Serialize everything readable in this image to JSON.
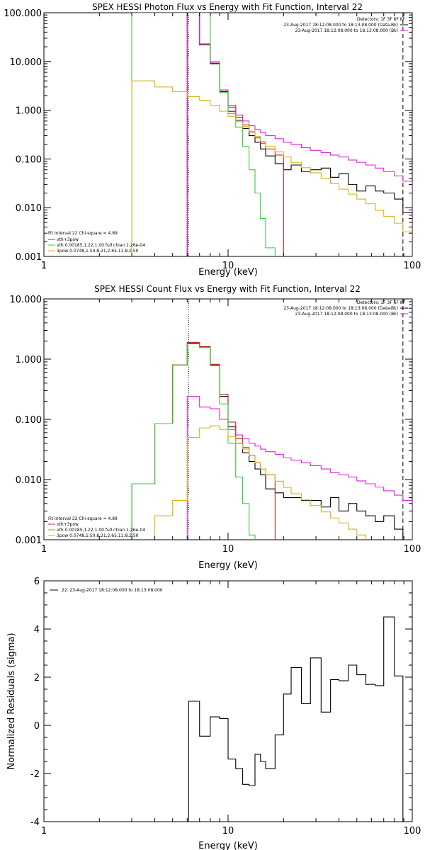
{
  "chart_data": [
    {
      "type": "line",
      "title": "SPEX HESSI Photon Flux vs Energy with Fit Function, Interval 22",
      "xlabel": "Energy (keV)",
      "ylabel": "",
      "xscale": "log",
      "yscale": "log",
      "xlim": [
        1,
        100
      ],
      "ylim": [
        0.001,
        100
      ],
      "x_ticks": [
        "1",
        "10",
        "100"
      ],
      "y_ticks": [
        "0.001",
        "0.010",
        "0.100",
        "1.000",
        "10.000",
        "100.000"
      ],
      "legend_right": [
        "Detectors: 1F 3F 6F 8F",
        "23-Aug-2017 18:12:08.000 to 18:13:08.000 (Data-Bk)",
        "23-Aug-2017 18:12:08.000 to 18:13:08.000 (Bk)"
      ],
      "legend_left": [
        "Fit Interval 22   Chi-square = 4.89",
        "vth+3pow",
        "vth 0.00185,1.22,1.00  full chian 1.26e-04",
        "3pow 0.0748,1.50,8.21,2.65,11.8,2.50"
      ],
      "vlines": [
        {
          "x": 6.1,
          "style": "dotted"
        },
        {
          "x": 89,
          "style": "dashed"
        }
      ],
      "edges": [
        3,
        4,
        5,
        6,
        7,
        8,
        9,
        10,
        11,
        12,
        13,
        14,
        15,
        16,
        18,
        20,
        22,
        25,
        28,
        32,
        36,
        40,
        45,
        50,
        56,
        63,
        70,
        80,
        89,
        100
      ],
      "series": [
        {
          "name": "",
          "color": "#000000",
          "values": [
            null,
            null,
            null,
            100,
            22,
            9.0,
            2.4,
            0.95,
            0.62,
            0.42,
            0.3,
            0.22,
            0.16,
            0.115,
            0.08,
            0.06,
            0.075,
            0.055,
            0.06,
            0.065,
            0.042,
            0.05,
            0.03,
            0.022,
            0.028,
            0.022,
            0.02,
            0.015,
            0.008,
            null
          ]
        },
        {
          "name": "",
          "color": "#cc2222",
          "values": [
            null,
            null,
            null,
            100,
            23,
            9.3,
            2.6,
            1.25,
            0.72,
            0.5,
            0.36,
            0.27,
            0.21,
            0.16,
            0.12,
            null,
            null,
            null,
            null,
            null,
            null,
            null,
            null,
            null,
            null,
            null,
            null,
            null,
            null,
            null
          ]
        },
        {
          "name": "",
          "color": "#dd22dd",
          "values": [
            null,
            null,
            null,
            100,
            23,
            9.3,
            2.6,
            1.15,
            0.8,
            0.6,
            0.48,
            0.4,
            0.35,
            0.3,
            0.26,
            0.22,
            0.2,
            0.17,
            0.15,
            0.135,
            0.12,
            0.11,
            0.095,
            0.085,
            0.075,
            0.065,
            0.055,
            0.045,
            0.035,
            null
          ]
        },
        {
          "name": "",
          "color": "#33cc33",
          "values": [
            100,
            100,
            100,
            100,
            100,
            10.0,
            2.3,
            0.85,
            0.45,
            0.18,
            0.06,
            0.02,
            0.006,
            0.0015,
            null,
            null,
            null,
            null,
            null,
            null,
            null,
            null,
            null,
            null,
            null,
            null,
            null,
            null,
            null,
            null
          ]
        },
        {
          "name": "",
          "color": "#d4b418",
          "values": [
            4.0,
            3.0,
            2.4,
            1.9,
            1.6,
            1.25,
            0.95,
            0.75,
            0.58,
            0.46,
            0.37,
            0.29,
            0.23,
            0.18,
            0.14,
            0.11,
            0.085,
            0.066,
            0.052,
            0.04,
            0.031,
            0.024,
            0.019,
            0.015,
            0.012,
            0.0088,
            0.0066,
            0.0048,
            0.0032,
            0.0024
          ]
        }
      ]
    },
    {
      "type": "line",
      "title": "SPEX HESSI Count Flux vs Energy with Fit Function, Interval 22",
      "xlabel": "Energy (keV)",
      "ylabel": "",
      "xscale": "log",
      "yscale": "log",
      "xlim": [
        1,
        100
      ],
      "ylim": [
        0.001,
        10
      ],
      "x_ticks": [
        "1",
        "10",
        "100"
      ],
      "y_ticks": [
        "0.001",
        "0.010",
        "0.100",
        "1.000",
        "10.000"
      ],
      "legend_right": [
        "Detectors: 1F 3F 6F 8F",
        "23-Aug-2017 18:12:08.000 to 18:13:08.000 (Data-Bk)",
        "23-Aug-2017 18:12:08.000 to 18:13:08.000 (Bk)"
      ],
      "legend_left": [
        "Fit Interval 22   Chi-square = 4.89",
        "vth+3pow",
        "vth 0.00185,1.22,1.00  full chian 1.26e-04",
        "3pow 0.0748,1.50,8.21,2.65,11.8,2.50"
      ],
      "vlines": [
        {
          "x": 6.1,
          "style": "dotted"
        },
        {
          "x": 89,
          "style": "dashed"
        }
      ],
      "edges": [
        3,
        4,
        5,
        6,
        7,
        8,
        9,
        10,
        11,
        12,
        13,
        14,
        15,
        16,
        18,
        20,
        22,
        25,
        28,
        32,
        36,
        40,
        45,
        50,
        56,
        63,
        70,
        80,
        89,
        100
      ],
      "series": [
        {
          "name": "",
          "color": "#000000",
          "values": [
            0.0085,
            0.085,
            0.8,
            1.85,
            1.6,
            0.8,
            0.24,
            0.075,
            0.04,
            0.028,
            0.02,
            0.015,
            0.012,
            0.007,
            0.006,
            0.005,
            0.005,
            0.0045,
            0.0045,
            0.0035,
            0.005,
            0.003,
            0.004,
            0.003,
            0.0025,
            0.002,
            0.0025,
            0.0015,
            0.001,
            null
          ]
        },
        {
          "name": "",
          "color": "#cc2222",
          "values": [
            0.0085,
            0.085,
            0.8,
            1.9,
            1.62,
            0.82,
            0.26,
            0.09,
            0.048,
            0.034,
            0.025,
            0.019,
            0.015,
            0.012,
            null,
            null,
            null,
            null,
            null,
            null,
            null,
            null,
            null,
            null,
            null,
            null,
            null,
            null,
            null,
            null
          ]
        },
        {
          "name": "",
          "color": "#dd22dd",
          "values": [
            null,
            null,
            null,
            0.24,
            0.16,
            0.15,
            0.1,
            0.068,
            0.055,
            0.048,
            0.04,
            0.036,
            0.032,
            0.029,
            0.026,
            0.023,
            0.021,
            0.019,
            0.017,
            0.015,
            0.013,
            0.012,
            0.011,
            0.0095,
            0.0085,
            0.0075,
            0.0065,
            0.0055,
            0.0045,
            null
          ]
        },
        {
          "name": "",
          "color": "#33cc33",
          "values": [
            0.0085,
            0.085,
            0.8,
            1.8,
            1.55,
            0.78,
            0.18,
            0.04,
            0.011,
            0.004,
            0.0012,
            null,
            null,
            null,
            null,
            null,
            null,
            null,
            null,
            null,
            null,
            null,
            null,
            null,
            null,
            null,
            null,
            null,
            null,
            null
          ]
        },
        {
          "name": "",
          "color": "#d4b418",
          "values": [
            null,
            0.0025,
            0.0045,
            0.05,
            0.072,
            0.078,
            0.068,
            0.052,
            0.04,
            0.032,
            0.025,
            0.019,
            0.015,
            0.012,
            0.0094,
            0.0074,
            0.0058,
            0.0046,
            0.0037,
            0.0029,
            0.0023,
            0.0019,
            0.0015,
            0.0012,
            null,
            null,
            null,
            null,
            null,
            null
          ]
        }
      ]
    },
    {
      "type": "line",
      "title": "",
      "xlabel": "Energy (keV)",
      "ylabel": "Normalized Residuals (sigma)",
      "xscale": "log",
      "yscale": "linear",
      "xlim": [
        1,
        100
      ],
      "ylim": [
        -4,
        6
      ],
      "x_ticks": [
        "1",
        "10",
        "100"
      ],
      "y_ticks": [
        "-4",
        "-2",
        "0",
        "2",
        "4",
        "6"
      ],
      "legend_left": [
        "22. 23-Aug-2017 18:12:08.000 to 18:13:08.000"
      ],
      "edges": [
        6.1,
        7,
        8,
        9,
        10,
        11,
        12,
        13,
        14,
        15,
        16,
        18,
        20,
        22,
        25,
        28,
        32,
        36,
        40,
        45,
        50,
        56,
        63,
        70,
        80,
        89
      ],
      "series": [
        {
          "name": "",
          "color": "#000000",
          "values": [
            1.0,
            -0.45,
            0.35,
            0.28,
            -1.4,
            -1.8,
            -2.45,
            -2.5,
            -1.2,
            -1.5,
            -1.8,
            -0.4,
            1.3,
            2.4,
            0.9,
            2.8,
            0.55,
            1.9,
            1.85,
            2.5,
            2.1,
            1.7,
            1.65,
            4.5,
            2.05
          ]
        }
      ]
    }
  ]
}
